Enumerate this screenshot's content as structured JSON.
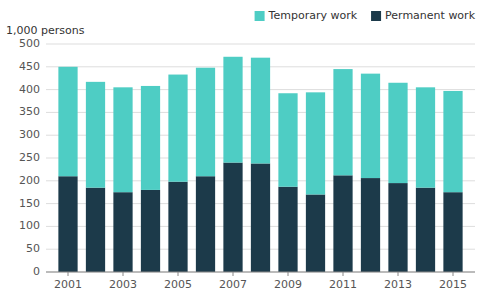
{
  "chart_data": {
    "type": "bar",
    "stacked": true,
    "ylabel": "1,000 persons",
    "x": [
      2001,
      2002,
      2003,
      2004,
      2005,
      2006,
      2007,
      2008,
      2009,
      2010,
      2011,
      2012,
      2013,
      2014,
      2015
    ],
    "series": [
      {
        "name": "Permanent work",
        "color": "#1c3a4a",
        "values": [
          210,
          185,
          175,
          180,
          198,
          210,
          240,
          238,
          187,
          170,
          212,
          206,
          195,
          185,
          175
        ]
      },
      {
        "name": "Temporary work",
        "color": "#4ecdc4",
        "values": [
          240,
          232,
          230,
          228,
          235,
          238,
          232,
          232,
          205,
          224,
          233,
          229,
          220,
          220,
          222
        ]
      }
    ],
    "xlim": [
      2000.2,
      2015.8
    ],
    "xticks": [
      2001,
      2003,
      2005,
      2007,
      2009,
      2011,
      2013,
      2015
    ],
    "ylim": [
      0,
      500
    ],
    "yticks": [
      0,
      50,
      100,
      150,
      200,
      250,
      300,
      350,
      400,
      450,
      500
    ],
    "grid": true,
    "legend": "upper right"
  }
}
